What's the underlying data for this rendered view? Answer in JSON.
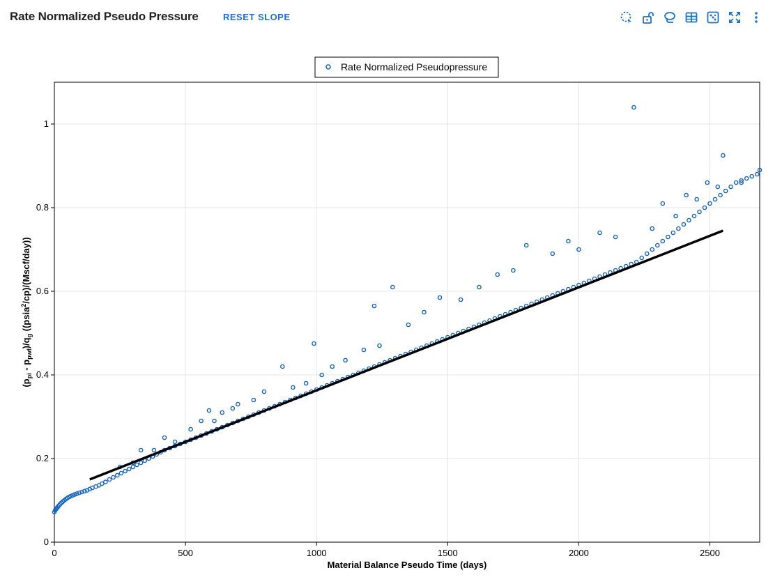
{
  "header": {
    "title": "Rate Normalized Pseudo Pressure",
    "reset_label": "RESET SLOPE"
  },
  "toolbar": {
    "icons": [
      "box-select-icon",
      "unlock-icon",
      "lasso-icon",
      "table-icon",
      "fit-icon",
      "fullscreen-icon",
      "more-icon"
    ]
  },
  "colors": {
    "accent": "#1a73c9",
    "points": "#1565c0",
    "line": "#000000"
  },
  "chart_data": {
    "type": "scatter",
    "title": "",
    "legend": {
      "label": "Rate Normalized Pseudopressure",
      "position": "top-center"
    },
    "xlabel": "Material Balance Pseudo Time (days)",
    "ylabel_parts": {
      "p1": "(p",
      "s1": "pi",
      "p2": " - p",
      "s2": "pwf",
      "p3": ")/q",
      "s3": "g",
      "p4": " ((psia",
      "sup": "2",
      "p5": "/cp)/(Mscf/day))"
    },
    "xlim": [
      0,
      2690
    ],
    "ylim": [
      0,
      1.1
    ],
    "xticks": [
      0,
      500,
      1000,
      1500,
      2000,
      2500
    ],
    "yticks": [
      0,
      0.2,
      0.4,
      0.6,
      0.8,
      1
    ],
    "grid": true,
    "trend_line": {
      "x": [
        135,
        2550
      ],
      "y": [
        0.15,
        0.745
      ]
    },
    "series": [
      {
        "name": "Rate Normalized Pseudopressure",
        "x": [
          0,
          3,
          5,
          8,
          10,
          14,
          18,
          22,
          27,
          32,
          38,
          44,
          50,
          56,
          62,
          70,
          78,
          86,
          95,
          105,
          115,
          125,
          135,
          145,
          158,
          170,
          182,
          195,
          210,
          225,
          240,
          255,
          270,
          285,
          300,
          315,
          330,
          345,
          360,
          375,
          390,
          405,
          420,
          440,
          460,
          480,
          500,
          520,
          540,
          560,
          580,
          600,
          620,
          640,
          660,
          680,
          700,
          720,
          740,
          760,
          780,
          800,
          820,
          840,
          860,
          880,
          900,
          920,
          940,
          960,
          980,
          1000,
          1020,
          1040,
          1060,
          1080,
          1100,
          1120,
          1140,
          1160,
          1180,
          1200,
          1220,
          1240,
          1260,
          1280,
          1300,
          1320,
          1340,
          1360,
          1380,
          1400,
          1420,
          1440,
          1460,
          1480,
          1500,
          1520,
          1540,
          1560,
          1580,
          1600,
          1620,
          1640,
          1660,
          1680,
          1700,
          1720,
          1740,
          1760,
          1780,
          1800,
          1820,
          1840,
          1860,
          1880,
          1900,
          1920,
          1940,
          1960,
          1980,
          2000,
          2020,
          2040,
          2060,
          2080,
          2100,
          2120,
          2140,
          2160,
          2180,
          2200,
          2220,
          2240,
          2260,
          2280,
          2300,
          2320,
          2340,
          2360,
          2380,
          2400,
          2420,
          2440,
          2460,
          2480,
          2500,
          2520,
          2540,
          2560,
          2580,
          2600,
          2620,
          2640,
          2660,
          2680,
          2210,
          2550,
          2690,
          2620,
          2490,
          1290,
          1220,
          990,
          1110,
          870,
          590,
          1470,
          1800,
          1960,
          2080,
          2320,
          2410,
          1690,
          1750,
          1550,
          1350,
          1240,
          1060,
          960,
          800,
          700,
          640,
          560,
          420,
          330,
          250,
          1900,
          2000,
          2140,
          2280,
          2370,
          2450,
          2530,
          1620,
          1410,
          1180,
          1020,
          910,
          760,
          680,
          610,
          520,
          460,
          380,
          300
        ],
        "y": [
          0.072,
          0.076,
          0.078,
          0.08,
          0.082,
          0.085,
          0.088,
          0.091,
          0.094,
          0.097,
          0.1,
          0.103,
          0.106,
          0.108,
          0.11,
          0.112,
          0.114,
          0.116,
          0.118,
          0.12,
          0.122,
          0.124,
          0.127,
          0.13,
          0.133,
          0.136,
          0.14,
          0.144,
          0.15,
          0.155,
          0.16,
          0.165,
          0.17,
          0.175,
          0.18,
          0.185,
          0.19,
          0.195,
          0.2,
          0.205,
          0.21,
          0.215,
          0.22,
          0.225,
          0.23,
          0.235,
          0.24,
          0.245,
          0.25,
          0.255,
          0.26,
          0.265,
          0.27,
          0.275,
          0.28,
          0.285,
          0.29,
          0.295,
          0.3,
          0.305,
          0.31,
          0.315,
          0.32,
          0.325,
          0.33,
          0.335,
          0.34,
          0.345,
          0.35,
          0.355,
          0.36,
          0.365,
          0.37,
          0.375,
          0.38,
          0.385,
          0.39,
          0.395,
          0.4,
          0.405,
          0.41,
          0.415,
          0.42,
          0.425,
          0.43,
          0.435,
          0.44,
          0.445,
          0.45,
          0.455,
          0.46,
          0.465,
          0.47,
          0.475,
          0.48,
          0.485,
          0.49,
          0.495,
          0.5,
          0.505,
          0.51,
          0.515,
          0.52,
          0.525,
          0.53,
          0.535,
          0.54,
          0.545,
          0.55,
          0.555,
          0.56,
          0.565,
          0.57,
          0.575,
          0.58,
          0.585,
          0.59,
          0.595,
          0.6,
          0.605,
          0.61,
          0.615,
          0.62,
          0.625,
          0.63,
          0.635,
          0.64,
          0.645,
          0.65,
          0.655,
          0.66,
          0.665,
          0.67,
          0.68,
          0.69,
          0.7,
          0.71,
          0.72,
          0.73,
          0.74,
          0.75,
          0.76,
          0.77,
          0.78,
          0.79,
          0.8,
          0.81,
          0.82,
          0.83,
          0.84,
          0.85,
          0.86,
          0.865,
          0.87,
          0.875,
          0.88,
          1.04,
          0.925,
          0.89,
          0.86,
          0.86,
          0.61,
          0.565,
          0.475,
          0.435,
          0.42,
          0.315,
          0.585,
          0.71,
          0.72,
          0.74,
          0.81,
          0.83,
          0.64,
          0.65,
          0.58,
          0.52,
          0.47,
          0.42,
          0.38,
          0.36,
          0.33,
          0.31,
          0.29,
          0.25,
          0.22,
          0.18,
          0.69,
          0.7,
          0.73,
          0.75,
          0.78,
          0.82,
          0.85,
          0.61,
          0.55,
          0.46,
          0.4,
          0.37,
          0.34,
          0.32,
          0.29,
          0.27,
          0.24,
          0.22,
          0.19
        ]
      }
    ]
  }
}
